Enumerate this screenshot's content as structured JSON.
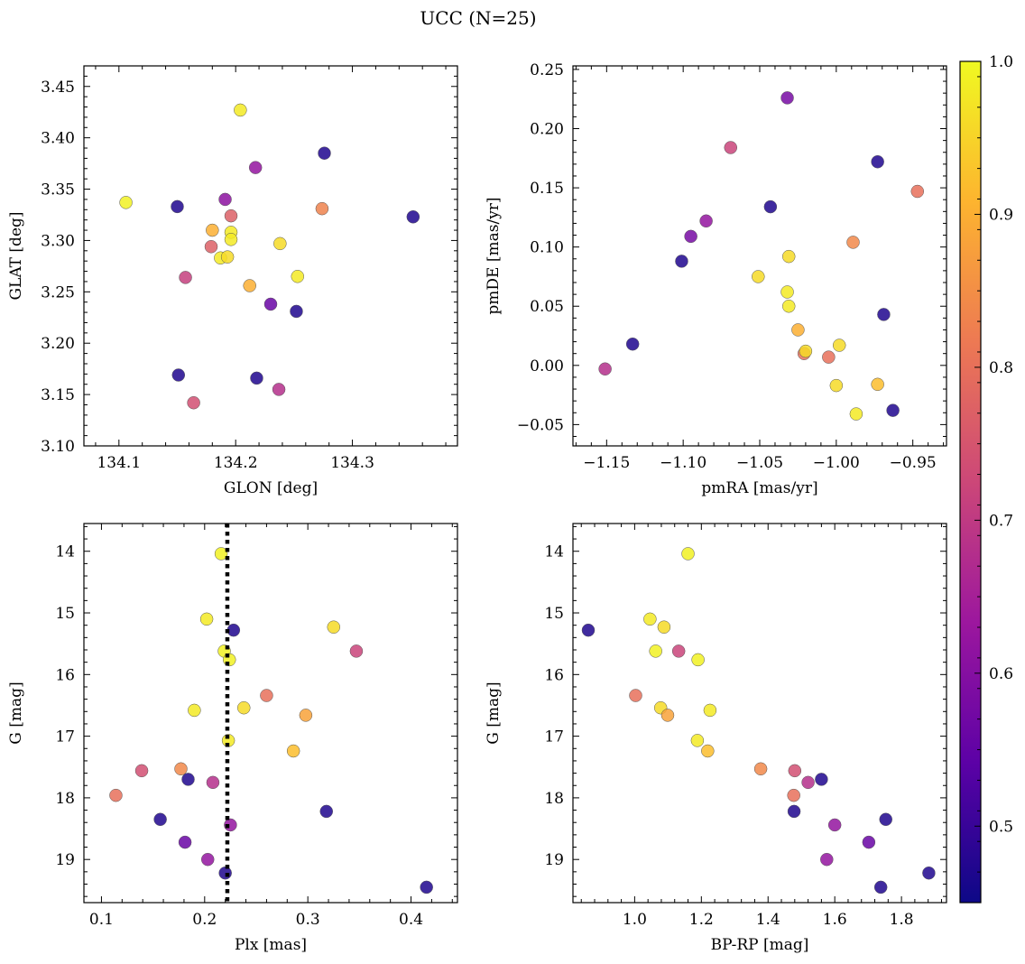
{
  "figure": {
    "title": "UCC (N=25)"
  },
  "colorbar": {
    "range": [
      0.45,
      1.0
    ],
    "ticks": [
      0.5,
      0.6,
      0.7,
      0.8,
      0.9,
      1.0
    ],
    "tick_labels": [
      "0.5",
      "0.6",
      "0.7",
      "0.8",
      "0.9",
      "1.0"
    ],
    "colormap": "plasma",
    "stops": [
      "#0d0887",
      "#5c01a6",
      "#9c179e",
      "#cc4778",
      "#ed7953",
      "#fdb42f",
      "#f0f921"
    ]
  },
  "chart_data": [
    {
      "type": "scatter",
      "xlabel": "GLON [deg]",
      "ylabel": "GLAT [deg]",
      "xlim": [
        134.07,
        134.39
      ],
      "ylim": [
        3.1,
        3.47
      ],
      "invert_y": false,
      "xticks": [
        134.1,
        134.2,
        134.3
      ],
      "xtick_labels": [
        "134.1",
        "134.2",
        "134.3"
      ],
      "yticks": [
        3.1,
        3.15,
        3.2,
        3.25,
        3.3,
        3.35,
        3.4,
        3.45
      ],
      "ytick_labels": [
        "3.10",
        "3.15",
        "3.20",
        "3.25",
        "3.30",
        "3.35",
        "3.40",
        "3.45"
      ],
      "points": [
        {
          "x": 134.106,
          "y": 3.337,
          "c": 0.99
        },
        {
          "x": 134.15,
          "y": 3.333,
          "c": 0.47
        },
        {
          "x": 134.151,
          "y": 3.169,
          "c": 0.47
        },
        {
          "x": 134.157,
          "y": 3.264,
          "c": 0.71
        },
        {
          "x": 134.164,
          "y": 3.142,
          "c": 0.74
        },
        {
          "x": 134.179,
          "y": 3.294,
          "c": 0.77
        },
        {
          "x": 134.18,
          "y": 3.31,
          "c": 0.9
        },
        {
          "x": 134.187,
          "y": 3.283,
          "c": 0.98
        },
        {
          "x": 134.191,
          "y": 3.34,
          "c": 0.61
        },
        {
          "x": 134.193,
          "y": 3.284,
          "c": 0.96
        },
        {
          "x": 134.196,
          "y": 3.308,
          "c": 0.98
        },
        {
          "x": 134.196,
          "y": 3.301,
          "c": 0.98
        },
        {
          "x": 134.196,
          "y": 3.324,
          "c": 0.77
        },
        {
          "x": 134.204,
          "y": 3.427,
          "c": 0.98
        },
        {
          "x": 134.212,
          "y": 3.256,
          "c": 0.9
        },
        {
          "x": 134.217,
          "y": 3.371,
          "c": 0.62
        },
        {
          "x": 134.218,
          "y": 3.166,
          "c": 0.47
        },
        {
          "x": 134.23,
          "y": 3.238,
          "c": 0.56
        },
        {
          "x": 134.237,
          "y": 3.155,
          "c": 0.68
        },
        {
          "x": 134.238,
          "y": 3.297,
          "c": 0.96
        },
        {
          "x": 134.252,
          "y": 3.231,
          "c": 0.47
        },
        {
          "x": 134.253,
          "y": 3.265,
          "c": 0.98
        },
        {
          "x": 134.274,
          "y": 3.331,
          "c": 0.83
        },
        {
          "x": 134.276,
          "y": 3.385,
          "c": 0.47
        },
        {
          "x": 134.352,
          "y": 3.323,
          "c": 0.47
        }
      ]
    },
    {
      "type": "scatter",
      "xlabel": "pmRA [mas/yr]",
      "ylabel": "pmDE [mas/yr]",
      "xlim": [
        -1.172,
        -0.928
      ],
      "ylim": [
        -0.068,
        0.253
      ],
      "invert_y": false,
      "xticks": [
        -1.15,
        -1.1,
        -1.05,
        -1.0,
        -0.95
      ],
      "xtick_labels": [
        "−1.15",
        "−1.10",
        "−1.05",
        "−1.00",
        "−0.95"
      ],
      "yticks": [
        -0.05,
        0.0,
        0.05,
        0.1,
        0.15,
        0.2,
        0.25
      ],
      "ytick_labels": [
        "−0.05",
        "0.00",
        "0.05",
        "0.10",
        "0.15",
        "0.20",
        "0.25"
      ],
      "points": [
        {
          "x": -1.151,
          "y": -0.003,
          "c": 0.68
        },
        {
          "x": -1.133,
          "y": 0.018,
          "c": 0.47
        },
        {
          "x": -1.101,
          "y": 0.088,
          "c": 0.47
        },
        {
          "x": -1.095,
          "y": 0.109,
          "c": 0.58
        },
        {
          "x": -1.085,
          "y": 0.122,
          "c": 0.62
        },
        {
          "x": -1.069,
          "y": 0.184,
          "c": 0.72
        },
        {
          "x": -1.051,
          "y": 0.075,
          "c": 0.96
        },
        {
          "x": -1.043,
          "y": 0.134,
          "c": 0.47
        },
        {
          "x": -1.032,
          "y": 0.226,
          "c": 0.58
        },
        {
          "x": -1.032,
          "y": 0.062,
          "c": 0.98
        },
        {
          "x": -1.031,
          "y": 0.05,
          "c": 0.98
        },
        {
          "x": -1.031,
          "y": 0.092,
          "c": 0.96
        },
        {
          "x": -1.025,
          "y": 0.03,
          "c": 0.9
        },
        {
          "x": -1.021,
          "y": 0.01,
          "c": 0.8
        },
        {
          "x": -1.02,
          "y": 0.012,
          "c": 0.96
        },
        {
          "x": -1.005,
          "y": 0.007,
          "c": 0.8
        },
        {
          "x": -1.0,
          "y": -0.017,
          "c": 0.96
        },
        {
          "x": -0.998,
          "y": 0.017,
          "c": 0.96
        },
        {
          "x": -0.989,
          "y": 0.104,
          "c": 0.84
        },
        {
          "x": -0.987,
          "y": -0.041,
          "c": 0.98
        },
        {
          "x": -0.973,
          "y": -0.016,
          "c": 0.92
        },
        {
          "x": -0.973,
          "y": 0.172,
          "c": 0.47
        },
        {
          "x": -0.969,
          "y": 0.043,
          "c": 0.47
        },
        {
          "x": -0.963,
          "y": -0.038,
          "c": 0.47
        },
        {
          "x": -0.947,
          "y": 0.147,
          "c": 0.8
        }
      ]
    },
    {
      "type": "scatter",
      "xlabel": "Plx [mas]",
      "ylabel": "G [mag]",
      "xlim": [
        0.083,
        0.445
      ],
      "ylim": [
        13.55,
        19.7
      ],
      "invert_y": true,
      "vline": 0.222,
      "xticks": [
        0.1,
        0.2,
        0.3,
        0.4
      ],
      "xtick_labels": [
        "0.1",
        "0.2",
        "0.3",
        "0.4"
      ],
      "yticks": [
        14,
        15,
        16,
        17,
        18,
        19
      ],
      "ytick_labels": [
        "14",
        "15",
        "16",
        "17",
        "18",
        "19"
      ],
      "points": [
        {
          "x": 0.114,
          "y": 17.96,
          "c": 0.8
        },
        {
          "x": 0.139,
          "y": 17.56,
          "c": 0.74
        },
        {
          "x": 0.157,
          "y": 18.35,
          "c": 0.47
        },
        {
          "x": 0.177,
          "y": 17.53,
          "c": 0.84
        },
        {
          "x": 0.181,
          "y": 18.72,
          "c": 0.56
        },
        {
          "x": 0.184,
          "y": 17.7,
          "c": 0.47
        },
        {
          "x": 0.19,
          "y": 16.58,
          "c": 0.98
        },
        {
          "x": 0.203,
          "y": 19.0,
          "c": 0.62
        },
        {
          "x": 0.202,
          "y": 15.1,
          "c": 0.98
        },
        {
          "x": 0.208,
          "y": 17.75,
          "c": 0.68
        },
        {
          "x": 0.216,
          "y": 14.04,
          "c": 0.99
        },
        {
          "x": 0.219,
          "y": 15.62,
          "c": 0.99
        },
        {
          "x": 0.22,
          "y": 19.22,
          "c": 0.47
        },
        {
          "x": 0.223,
          "y": 17.07,
          "c": 0.98
        },
        {
          "x": 0.224,
          "y": 15.76,
          "c": 0.99
        },
        {
          "x": 0.225,
          "y": 18.44,
          "c": 0.62
        },
        {
          "x": 0.228,
          "y": 15.28,
          "c": 0.47
        },
        {
          "x": 0.238,
          "y": 16.54,
          "c": 0.96
        },
        {
          "x": 0.26,
          "y": 16.34,
          "c": 0.8
        },
        {
          "x": 0.286,
          "y": 17.24,
          "c": 0.92
        },
        {
          "x": 0.298,
          "y": 16.66,
          "c": 0.88
        },
        {
          "x": 0.318,
          "y": 18.22,
          "c": 0.47
        },
        {
          "x": 0.325,
          "y": 15.23,
          "c": 0.96
        },
        {
          "x": 0.347,
          "y": 15.62,
          "c": 0.72
        },
        {
          "x": 0.415,
          "y": 19.45,
          "c": 0.47
        }
      ]
    },
    {
      "type": "scatter",
      "xlabel": "BP-RP [mag]",
      "ylabel": "G [mag]",
      "xlim": [
        0.815,
        1.935
      ],
      "ylim": [
        13.55,
        19.7
      ],
      "invert_y": true,
      "xticks": [
        1.0,
        1.2,
        1.4,
        1.6,
        1.8
      ],
      "xtick_labels": [
        "1.0",
        "1.2",
        "1.4",
        "1.6",
        "1.8"
      ],
      "yticks": [
        14,
        15,
        16,
        17,
        18,
        19
      ],
      "ytick_labels": [
        "14",
        "15",
        "16",
        "17",
        "18",
        "19"
      ],
      "points": [
        {
          "x": 0.861,
          "y": 15.28,
          "c": 0.47
        },
        {
          "x": 1.003,
          "y": 16.34,
          "c": 0.8
        },
        {
          "x": 1.046,
          "y": 15.1,
          "c": 0.98
        },
        {
          "x": 1.063,
          "y": 15.62,
          "c": 0.99
        },
        {
          "x": 1.078,
          "y": 16.54,
          "c": 0.96
        },
        {
          "x": 1.088,
          "y": 15.23,
          "c": 0.96
        },
        {
          "x": 1.099,
          "y": 16.66,
          "c": 0.88
        },
        {
          "x": 1.132,
          "y": 15.62,
          "c": 0.72
        },
        {
          "x": 1.16,
          "y": 14.04,
          "c": 0.99
        },
        {
          "x": 1.188,
          "y": 17.07,
          "c": 0.98
        },
        {
          "x": 1.19,
          "y": 15.76,
          "c": 0.99
        },
        {
          "x": 1.219,
          "y": 17.24,
          "c": 0.92
        },
        {
          "x": 1.226,
          "y": 16.58,
          "c": 0.98
        },
        {
          "x": 1.378,
          "y": 17.53,
          "c": 0.84
        },
        {
          "x": 1.477,
          "y": 17.96,
          "c": 0.8
        },
        {
          "x": 1.478,
          "y": 18.22,
          "c": 0.47
        },
        {
          "x": 1.48,
          "y": 17.56,
          "c": 0.74
        },
        {
          "x": 1.52,
          "y": 17.75,
          "c": 0.68
        },
        {
          "x": 1.56,
          "y": 17.7,
          "c": 0.47
        },
        {
          "x": 1.576,
          "y": 19.0,
          "c": 0.62
        },
        {
          "x": 1.6,
          "y": 18.44,
          "c": 0.62
        },
        {
          "x": 1.702,
          "y": 18.72,
          "c": 0.56
        },
        {
          "x": 1.738,
          "y": 19.45,
          "c": 0.47
        },
        {
          "x": 1.753,
          "y": 18.35,
          "c": 0.47
        },
        {
          "x": 1.882,
          "y": 19.22,
          "c": 0.47
        }
      ]
    }
  ]
}
